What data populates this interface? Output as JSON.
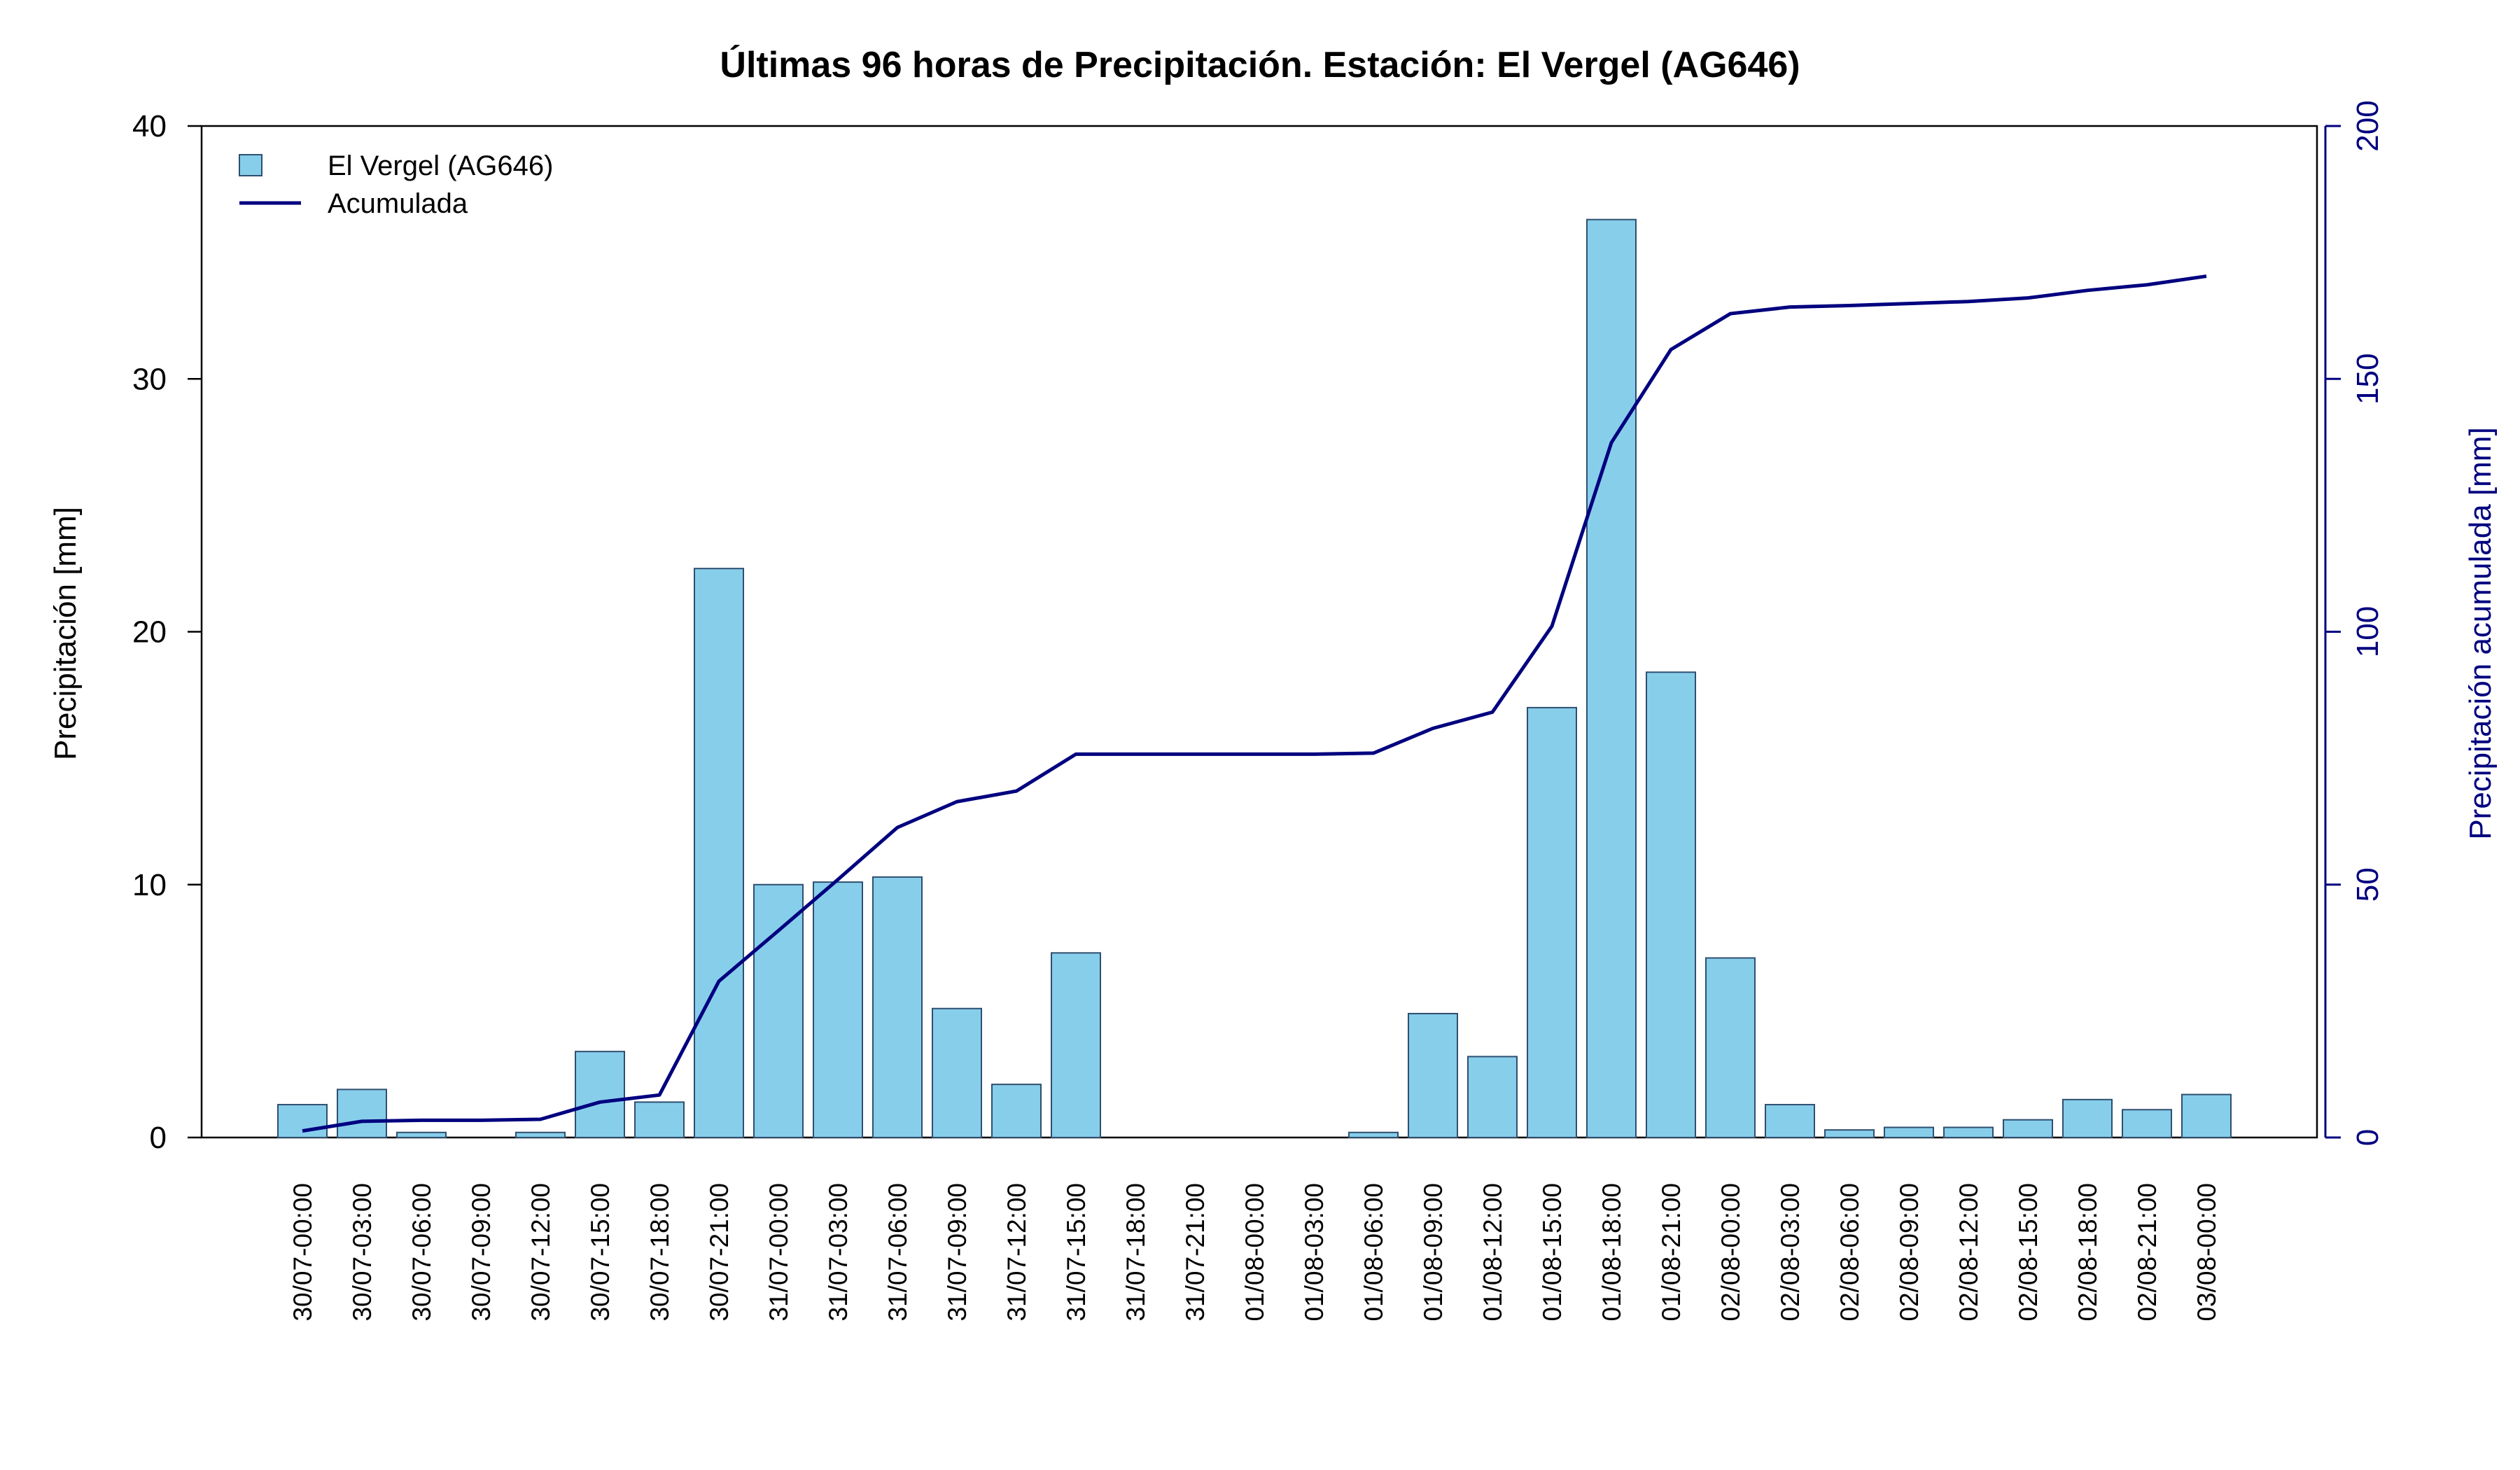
{
  "chart_data": {
    "type": "bar",
    "title": "Últimas 96 horas de Precipitación. Estación: El Vergel (AG646)",
    "ylabel": "Precipitación [mm]",
    "y2label": "Precipitación acumulada [mm]",
    "ylim": [
      0,
      40
    ],
    "y2lim": [
      0,
      200
    ],
    "yticks": [
      "0",
      "10",
      "20",
      "30",
      "40"
    ],
    "y2ticks": [
      "0",
      "50",
      "100",
      "150",
      "200"
    ],
    "categories": [
      "30/07-00:00",
      "30/07-03:00",
      "30/07-06:00",
      "30/07-09:00",
      "30/07-12:00",
      "30/07-15:00",
      "30/07-18:00",
      "30/07-21:00",
      "31/07-00:00",
      "31/07-03:00",
      "31/07-06:00",
      "31/07-09:00",
      "31/07-12:00",
      "31/07-15:00",
      "31/07-18:00",
      "31/07-21:00",
      "01/08-00:00",
      "01/08-03:00",
      "01/08-06:00",
      "01/08-09:00",
      "01/08-12:00",
      "01/08-15:00",
      "01/08-18:00",
      "01/08-21:00",
      "02/08-00:00",
      "02/08-03:00",
      "02/08-06:00",
      "02/08-09:00",
      "02/08-12:00",
      "02/08-15:00",
      "02/08-18:00",
      "02/08-21:00",
      "03/08-00:00"
    ],
    "series": [
      {
        "name": "El Vergel (AG646)",
        "type": "bar",
        "axis": "left",
        "values": [
          1.3,
          1.9,
          0.2,
          0.0,
          0.2,
          3.4,
          1.4,
          22.5,
          10.0,
          10.1,
          10.3,
          5.1,
          2.1,
          7.3,
          0.0,
          0.0,
          0.0,
          0.0,
          0.2,
          4.9,
          3.2,
          17.0,
          36.3,
          18.4,
          7.1,
          1.3,
          0.3,
          0.4,
          0.4,
          0.7,
          1.5,
          1.1,
          1.7
        ]
      },
      {
        "name": "Acumulada",
        "type": "line",
        "axis": "right",
        "values": [
          1.3,
          3.2,
          3.4,
          3.4,
          3.6,
          7.0,
          8.4,
          30.9,
          40.9,
          51.0,
          61.3,
          66.4,
          68.5,
          75.8,
          75.8,
          75.8,
          75.8,
          75.8,
          76.0,
          80.9,
          84.1,
          101.1,
          137.4,
          155.8,
          162.9,
          164.2,
          164.5,
          164.9,
          165.3,
          166.0,
          167.5,
          168.6,
          170.3
        ]
      }
    ],
    "colors": {
      "bar_fill": "#87ceeb",
      "bar_stroke": "#2f4f6f",
      "line": "#00007f",
      "axis": "#000000",
      "right_axis": "#00007f"
    },
    "legend": "top-left",
    "grid": false
  }
}
